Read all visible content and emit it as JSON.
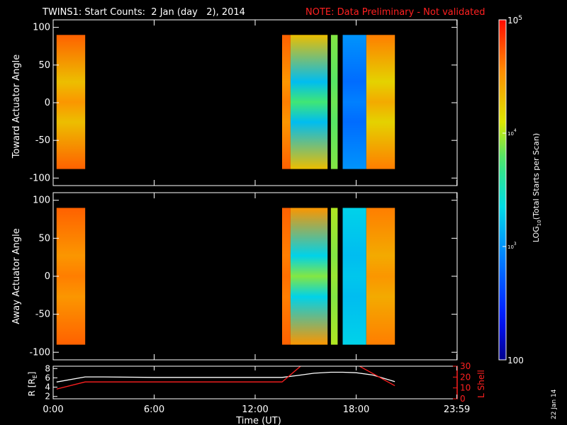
{
  "header": {
    "title": "TWINS1: Start Counts:  2 Jan (day   2), 2014",
    "note": "NOTE: Data Preliminary - Not validated"
  },
  "side_stamp": "22 Jan 14",
  "colors": {
    "background": "#000000",
    "axes": "#ffffff",
    "note": "#ff2020",
    "r_line": "#ffffff",
    "lshell_line": "#ff2020"
  },
  "colorbar": {
    "label_prefix": "LOG",
    "label_sub": "10",
    "label_suffix": "(Total Starts per Scan)",
    "scale": "log",
    "range": [
      100,
      100000
    ],
    "ticks": [
      {
        "value": 100000,
        "label_base": "10",
        "label_exp": "5"
      },
      {
        "value": 10000,
        "label_base": "10",
        "label_exp": "4"
      },
      {
        "value": 1000,
        "label_base": "10",
        "label_exp": "3"
      },
      {
        "value": 100,
        "label_base": "100",
        "label_exp": ""
      }
    ]
  },
  "chart_data": [
    {
      "type": "heatmap",
      "name": "toward",
      "title": "TWINS1: Start Counts:  2 Jan (day   2), 2014",
      "xlabel": "",
      "ylabel": "Toward Actuator Angle",
      "xlim": [
        0,
        24
      ],
      "ylim": [
        -110,
        110
      ],
      "yticks": [
        100,
        50,
        0,
        -50,
        -100
      ],
      "y_coverage": [
        -88,
        90
      ],
      "value_units": "log10 counts",
      "data_intervals": [
        {
          "start_hr": 0.2,
          "end_hr": 1.9
        },
        {
          "start_hr": 13.6,
          "end_hr": 16.3
        },
        {
          "start_hr": 16.5,
          "end_hr": 16.9
        },
        {
          "start_hr": 17.2,
          "end_hr": 20.3
        }
      ],
      "description_levels": [
        {
          "start_hr": 0.2,
          "end_hr": 1.9,
          "edge": 4.7,
          "core": 4.3
        },
        {
          "start_hr": 13.6,
          "end_hr": 14.1,
          "edge": 4.7,
          "core": 4.5
        },
        {
          "start_hr": 14.1,
          "end_hr": 16.3,
          "edge": 4.3,
          "core": 3.2
        },
        {
          "start_hr": 16.5,
          "end_hr": 16.9,
          "edge": 3.9,
          "core": 3.8
        },
        {
          "start_hr": 17.2,
          "end_hr": 18.6,
          "edge": 3.0,
          "core": 2.8
        },
        {
          "start_hr": 18.6,
          "end_hr": 20.3,
          "edge": 4.6,
          "core": 4.2
        }
      ]
    },
    {
      "type": "heatmap",
      "name": "away",
      "xlabel": "",
      "ylabel": "Away Actuator Angle",
      "xlim": [
        0,
        24
      ],
      "ylim": [
        -110,
        110
      ],
      "yticks": [
        100,
        50,
        0,
        -50,
        -100
      ],
      "y_coverage": [
        -90,
        90
      ],
      "value_units": "log10 counts",
      "data_intervals": [
        {
          "start_hr": 0.2,
          "end_hr": 1.9
        },
        {
          "start_hr": 13.6,
          "end_hr": 16.3
        },
        {
          "start_hr": 16.5,
          "end_hr": 16.9
        },
        {
          "start_hr": 17.2,
          "end_hr": 20.3
        }
      ],
      "description_levels": [
        {
          "start_hr": 0.2,
          "end_hr": 1.9,
          "edge": 4.7,
          "core": 4.5
        },
        {
          "start_hr": 13.6,
          "end_hr": 14.1,
          "edge": 4.7,
          "core": 4.6
        },
        {
          "start_hr": 14.1,
          "end_hr": 16.3,
          "edge": 4.5,
          "core": 3.3
        },
        {
          "start_hr": 16.5,
          "end_hr": 16.9,
          "edge": 4.0,
          "core": 3.9
        },
        {
          "start_hr": 17.2,
          "end_hr": 18.6,
          "edge": 3.3,
          "core": 3.2
        },
        {
          "start_hr": 18.6,
          "end_hr": 20.3,
          "edge": 4.6,
          "core": 4.4
        }
      ]
    },
    {
      "type": "line",
      "name": "ephemeris",
      "xlabel": "Time (UT)",
      "xlim": [
        0,
        24
      ],
      "xticks": [
        {
          "value": 0,
          "label": "0:00"
        },
        {
          "value": 6,
          "label": "6:00"
        },
        {
          "value": 12,
          "label": "12:00"
        },
        {
          "value": 18,
          "label": "18:00"
        },
        {
          "value": 23.983,
          "label": "23:59"
        }
      ],
      "left_axis": {
        "label_base": "R [R",
        "label_sub": "E",
        "label_end": "]",
        "ylim": [
          1.5,
          8.5
        ],
        "ticks": [
          "8",
          "6",
          "4",
          "2"
        ],
        "tick_values": [
          8,
          6,
          4,
          2
        ]
      },
      "right_axis": {
        "label": "L Shell",
        "ylim": [
          0,
          30
        ],
        "ticks": [
          "30",
          "20",
          "10",
          "0"
        ],
        "tick_values": [
          30,
          20,
          10,
          0
        ]
      },
      "series": [
        {
          "name": "R",
          "axis": "left",
          "color": "#ffffff",
          "x": [
            0.2,
            1.9,
            3.0,
            6.0,
            9.0,
            12.0,
            13.6,
            14.5,
            15.5,
            16.5,
            17.2,
            18.0,
            19.0,
            20.3
          ],
          "y": [
            5.1,
            6.2,
            6.2,
            6.1,
            6.1,
            6.1,
            6.1,
            6.5,
            7.0,
            7.2,
            7.2,
            7.1,
            6.6,
            5.2
          ]
        },
        {
          "name": "L Shell",
          "axis": "right",
          "color": "#ff2020",
          "x": [
            0.2,
            1.9,
            3.0,
            6.0,
            9.0,
            12.0,
            13.6,
            14.7
          ],
          "y": [
            9.0,
            15.5,
            15.5,
            15.5,
            15.5,
            15.5,
            15.5,
            30
          ],
          "x2": [
            18.2,
            20.3
          ],
          "y2": [
            30,
            12.0
          ]
        }
      ]
    }
  ]
}
